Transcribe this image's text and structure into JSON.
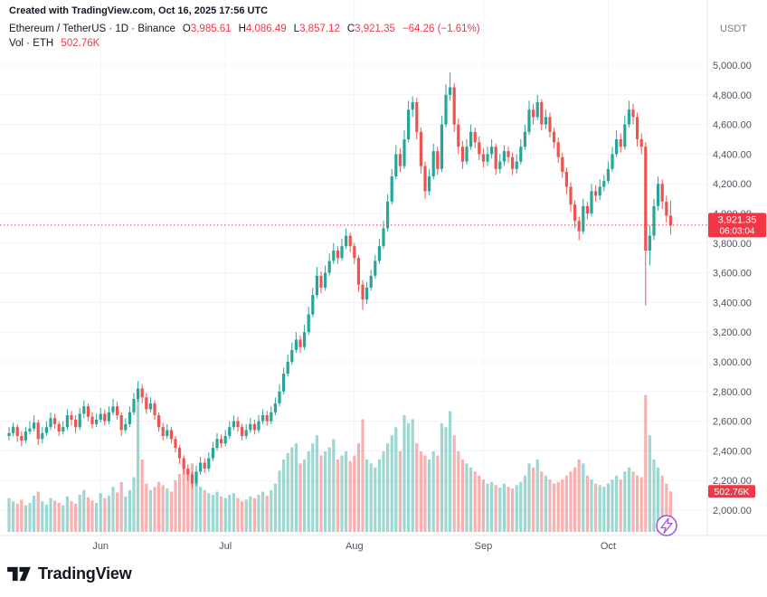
{
  "attribution": "Created with TradingView.com, Oct 16, 2025 17:56 UTC",
  "legend": {
    "title": "Ethereum / TetherUS · 1D · Binance",
    "o_label": "O",
    "o_value": "3,985.61",
    "h_label": "H",
    "h_value": "4,086.49",
    "l_label": "L",
    "l_value": "3,857.12",
    "c_label": "C",
    "c_value": "3,921.35",
    "change": "−64.26 (−1.61%)",
    "currency": "USDT",
    "vol_title": "Vol · ETH",
    "vol_value": "502.76K"
  },
  "footer": {
    "logo_text": "TradingView"
  },
  "chart_data": {
    "type": "candlestick",
    "title": "Ethereum / TetherUS daily candlestick chart with volume",
    "interval": "1D",
    "exchange": "Binance",
    "quote_currency": "USDT",
    "price_axis": {
      "min": 2000,
      "max": 5000,
      "step": 200
    },
    "last_price": 3921.35,
    "last_price_label": "3,921.35",
    "countdown": "06:03:04",
    "volume_label": "502.76K",
    "volume_scale_max_k": 2000,
    "month_labels": [
      {
        "label": "Jun",
        "index": 22
      },
      {
        "label": "Jul",
        "index": 52
      },
      {
        "label": "Aug",
        "index": 83
      },
      {
        "label": "Sep",
        "index": 114
      },
      {
        "label": "Oct",
        "index": 144
      }
    ],
    "colors": {
      "up": "#26a69a",
      "down": "#ef5350",
      "badge": "#f23645",
      "last_price_line": "#f23645",
      "grid": "#f0f3fa",
      "axis_text": "#50535e",
      "border": "#e0e3eb",
      "boost_purple": "#a84fd1"
    },
    "candle_format": [
      "open",
      "high",
      "low",
      "close",
      "volume_k"
    ],
    "candles": [
      [
        2500,
        2560,
        2470,
        2520,
        420
      ],
      [
        2520,
        2590,
        2500,
        2560,
        380
      ],
      [
        2560,
        2580,
        2460,
        2500,
        350
      ],
      [
        2500,
        2530,
        2430,
        2470,
        400
      ],
      [
        2470,
        2560,
        2450,
        2530,
        330
      ],
      [
        2530,
        2600,
        2510,
        2550,
        360
      ],
      [
        2550,
        2640,
        2530,
        2590,
        450
      ],
      [
        2590,
        2610,
        2440,
        2480,
        500
      ],
      [
        2480,
        2560,
        2450,
        2520,
        380
      ],
      [
        2520,
        2600,
        2500,
        2560,
        340
      ],
      [
        2560,
        2660,
        2540,
        2620,
        420
      ],
      [
        2620,
        2650,
        2550,
        2580,
        390
      ],
      [
        2580,
        2600,
        2500,
        2530,
        360
      ],
      [
        2530,
        2600,
        2510,
        2560,
        330
      ],
      [
        2560,
        2680,
        2540,
        2640,
        440
      ],
      [
        2640,
        2670,
        2570,
        2610,
        380
      ],
      [
        2610,
        2640,
        2520,
        2560,
        350
      ],
      [
        2560,
        2690,
        2540,
        2650,
        460
      ],
      [
        2650,
        2740,
        2620,
        2700,
        520
      ],
      [
        2700,
        2720,
        2600,
        2630,
        430
      ],
      [
        2630,
        2660,
        2550,
        2580,
        390
      ],
      [
        2580,
        2650,
        2560,
        2610,
        360
      ],
      [
        2610,
        2690,
        2590,
        2650,
        480
      ],
      [
        2650,
        2680,
        2570,
        2600,
        420
      ],
      [
        2600,
        2700,
        2580,
        2660,
        450
      ],
      [
        2660,
        2750,
        2640,
        2700,
        560
      ],
      [
        2700,
        2730,
        2610,
        2640,
        490
      ],
      [
        2640,
        2660,
        2500,
        2540,
        620
      ],
      [
        2540,
        2620,
        2520,
        2580,
        440
      ],
      [
        2580,
        2700,
        2560,
        2660,
        520
      ],
      [
        2660,
        2790,
        2640,
        2750,
        680
      ],
      [
        2750,
        2870,
        2730,
        2820,
        1750
      ],
      [
        2820,
        2850,
        2720,
        2760,
        900
      ],
      [
        2760,
        2790,
        2650,
        2680,
        600
      ],
      [
        2680,
        2760,
        2660,
        2720,
        520
      ],
      [
        2720,
        2740,
        2610,
        2640,
        560
      ],
      [
        2640,
        2660,
        2530,
        2560,
        620
      ],
      [
        2560,
        2590,
        2470,
        2500,
        580
      ],
      [
        2500,
        2580,
        2480,
        2540,
        540
      ],
      [
        2540,
        2560,
        2450,
        2480,
        500
      ],
      [
        2480,
        2500,
        2390,
        2420,
        640
      ],
      [
        2420,
        2440,
        2310,
        2350,
        720
      ],
      [
        2350,
        2370,
        2240,
        2280,
        800
      ],
      [
        2280,
        2310,
        2200,
        2240,
        760
      ],
      [
        2240,
        2260,
        2150,
        2180,
        850
      ],
      [
        2180,
        2300,
        2160,
        2260,
        700
      ],
      [
        2260,
        2360,
        2240,
        2320,
        560
      ],
      [
        2320,
        2350,
        2250,
        2280,
        520
      ],
      [
        2280,
        2390,
        2260,
        2350,
        480
      ],
      [
        2350,
        2460,
        2330,
        2420,
        460
      ],
      [
        2420,
        2520,
        2400,
        2480,
        500
      ],
      [
        2480,
        2510,
        2420,
        2450,
        440
      ],
      [
        2450,
        2540,
        2430,
        2500,
        420
      ],
      [
        2500,
        2600,
        2480,
        2560,
        460
      ],
      [
        2560,
        2640,
        2540,
        2600,
        480
      ],
      [
        2600,
        2630,
        2530,
        2560,
        420
      ],
      [
        2560,
        2580,
        2470,
        2500,
        380
      ],
      [
        2500,
        2580,
        2480,
        2540,
        400
      ],
      [
        2540,
        2620,
        2520,
        2580,
        440
      ],
      [
        2580,
        2610,
        2510,
        2540,
        420
      ],
      [
        2540,
        2640,
        2520,
        2600,
        460
      ],
      [
        2600,
        2680,
        2580,
        2640,
        500
      ],
      [
        2640,
        2670,
        2570,
        2600,
        450
      ],
      [
        2600,
        2700,
        2580,
        2660,
        520
      ],
      [
        2660,
        2760,
        2640,
        2720,
        600
      ],
      [
        2720,
        2850,
        2700,
        2800,
        760
      ],
      [
        2800,
        2960,
        2780,
        2920,
        900
      ],
      [
        2920,
        3050,
        2900,
        3000,
        980
      ],
      [
        3000,
        3130,
        2980,
        3080,
        1050
      ],
      [
        3080,
        3200,
        3060,
        3150,
        1100
      ],
      [
        3150,
        3180,
        3060,
        3100,
        850
      ],
      [
        3100,
        3250,
        3080,
        3200,
        900
      ],
      [
        3200,
        3370,
        3180,
        3320,
        1000
      ],
      [
        3320,
        3500,
        3300,
        3450,
        1100
      ],
      [
        3450,
        3640,
        3430,
        3580,
        1200
      ],
      [
        3580,
        3610,
        3460,
        3500,
        950
      ],
      [
        3500,
        3650,
        3480,
        3600,
        1000
      ],
      [
        3600,
        3730,
        3580,
        3680,
        1050
      ],
      [
        3680,
        3800,
        3660,
        3750,
        1150
      ],
      [
        3750,
        3780,
        3660,
        3700,
        900
      ],
      [
        3700,
        3830,
        3680,
        3780,
        950
      ],
      [
        3780,
        3900,
        3760,
        3850,
        1000
      ],
      [
        3850,
        3870,
        3740,
        3780,
        880
      ],
      [
        3780,
        3800,
        3660,
        3700,
        950
      ],
      [
        3700,
        3720,
        3470,
        3520,
        1100
      ],
      [
        3520,
        3550,
        3350,
        3420,
        1400
      ],
      [
        3420,
        3540,
        3390,
        3500,
        900
      ],
      [
        3500,
        3620,
        3480,
        3580,
        850
      ],
      [
        3580,
        3720,
        3560,
        3680,
        800
      ],
      [
        3680,
        3830,
        3660,
        3780,
        900
      ],
      [
        3780,
        3950,
        3760,
        3900,
        1000
      ],
      [
        3900,
        4130,
        3880,
        4080,
        1100
      ],
      [
        4080,
        4300,
        4060,
        4250,
        1200
      ],
      [
        4250,
        4460,
        4230,
        4400,
        1300
      ],
      [
        4400,
        4440,
        4280,
        4320,
        1000
      ],
      [
        4320,
        4560,
        4300,
        4500,
        1450
      ],
      [
        4500,
        4760,
        4480,
        4700,
        1350
      ],
      [
        4700,
        4790,
        4650,
        4750,
        1400
      ],
      [
        4750,
        4780,
        4500,
        4550,
        1100
      ],
      [
        4550,
        4580,
        4270,
        4320,
        1000
      ],
      [
        4320,
        4350,
        4100,
        4150,
        950
      ],
      [
        4150,
        4300,
        4120,
        4250,
        900
      ],
      [
        4250,
        4470,
        4230,
        4420,
        1000
      ],
      [
        4420,
        4450,
        4260,
        4300,
        950
      ],
      [
        4300,
        4660,
        4280,
        4600,
        1350
      ],
      [
        4600,
        4870,
        4580,
        4800,
        1300
      ],
      [
        4800,
        4950,
        4760,
        4850,
        1500
      ],
      [
        4850,
        4880,
        4550,
        4600,
        1200
      ],
      [
        4600,
        4640,
        4400,
        4450,
        1000
      ],
      [
        4450,
        4490,
        4300,
        4350,
        900
      ],
      [
        4350,
        4500,
        4330,
        4450,
        850
      ],
      [
        4450,
        4600,
        4430,
        4550,
        800
      ],
      [
        4550,
        4580,
        4440,
        4480,
        750
      ],
      [
        4480,
        4520,
        4360,
        4400,
        700
      ],
      [
        4400,
        4440,
        4310,
        4350,
        650
      ],
      [
        4350,
        4450,
        4320,
        4400,
        600
      ],
      [
        4400,
        4500,
        4370,
        4450,
        620
      ],
      [
        4450,
        4470,
        4260,
        4300,
        580
      ],
      [
        4300,
        4400,
        4270,
        4350,
        550
      ],
      [
        4350,
        4460,
        4320,
        4420,
        600
      ],
      [
        4420,
        4450,
        4340,
        4380,
        560
      ],
      [
        4380,
        4410,
        4260,
        4300,
        540
      ],
      [
        4300,
        4400,
        4270,
        4350,
        580
      ],
      [
        4350,
        4500,
        4330,
        4450,
        620
      ],
      [
        4450,
        4600,
        4430,
        4550,
        700
      ],
      [
        4550,
        4760,
        4530,
        4700,
        850
      ],
      [
        4700,
        4740,
        4600,
        4650,
        800
      ],
      [
        4650,
        4800,
        4630,
        4750,
        900
      ],
      [
        4750,
        4770,
        4560,
        4600,
        750
      ],
      [
        4600,
        4700,
        4570,
        4650,
        700
      ],
      [
        4650,
        4680,
        4510,
        4550,
        650
      ],
      [
        4550,
        4580,
        4440,
        4480,
        600
      ],
      [
        4480,
        4510,
        4340,
        4380,
        620
      ],
      [
        4380,
        4410,
        4240,
        4280,
        650
      ],
      [
        4280,
        4310,
        4130,
        4180,
        700
      ],
      [
        4180,
        4210,
        4010,
        4060,
        750
      ],
      [
        4060,
        4090,
        3900,
        3950,
        800
      ],
      [
        3950,
        3980,
        3820,
        3880,
        900
      ],
      [
        3880,
        4100,
        3860,
        4050,
        850
      ],
      [
        4050,
        4080,
        3960,
        4000,
        700
      ],
      [
        4000,
        4200,
        3980,
        4150,
        650
      ],
      [
        4150,
        4190,
        4080,
        4120,
        600
      ],
      [
        4120,
        4230,
        4090,
        4180,
        580
      ],
      [
        4180,
        4260,
        4150,
        4220,
        560
      ],
      [
        4220,
        4350,
        4200,
        4300,
        600
      ],
      [
        4300,
        4450,
        4280,
        4400,
        650
      ],
      [
        4400,
        4560,
        4380,
        4500,
        700
      ],
      [
        4500,
        4540,
        4410,
        4450,
        650
      ],
      [
        4450,
        4660,
        4430,
        4600,
        750
      ],
      [
        4600,
        4760,
        4580,
        4700,
        800
      ],
      [
        4700,
        4740,
        4600,
        4650,
        750
      ],
      [
        4650,
        4680,
        4450,
        4500,
        700
      ],
      [
        4500,
        4540,
        4400,
        4450,
        680
      ],
      [
        4450,
        4480,
        3380,
        3750,
        1700
      ],
      [
        3750,
        3920,
        3650,
        3850,
        1200
      ],
      [
        3850,
        4100,
        3820,
        4050,
        900
      ],
      [
        4050,
        4250,
        4020,
        4200,
        800
      ],
      [
        4200,
        4230,
        4030,
        4080,
        700
      ],
      [
        4080,
        4120,
        3940,
        3985.61,
        600
      ],
      [
        3985.61,
        4086.49,
        3857.12,
        3921.35,
        502.76
      ]
    ]
  }
}
